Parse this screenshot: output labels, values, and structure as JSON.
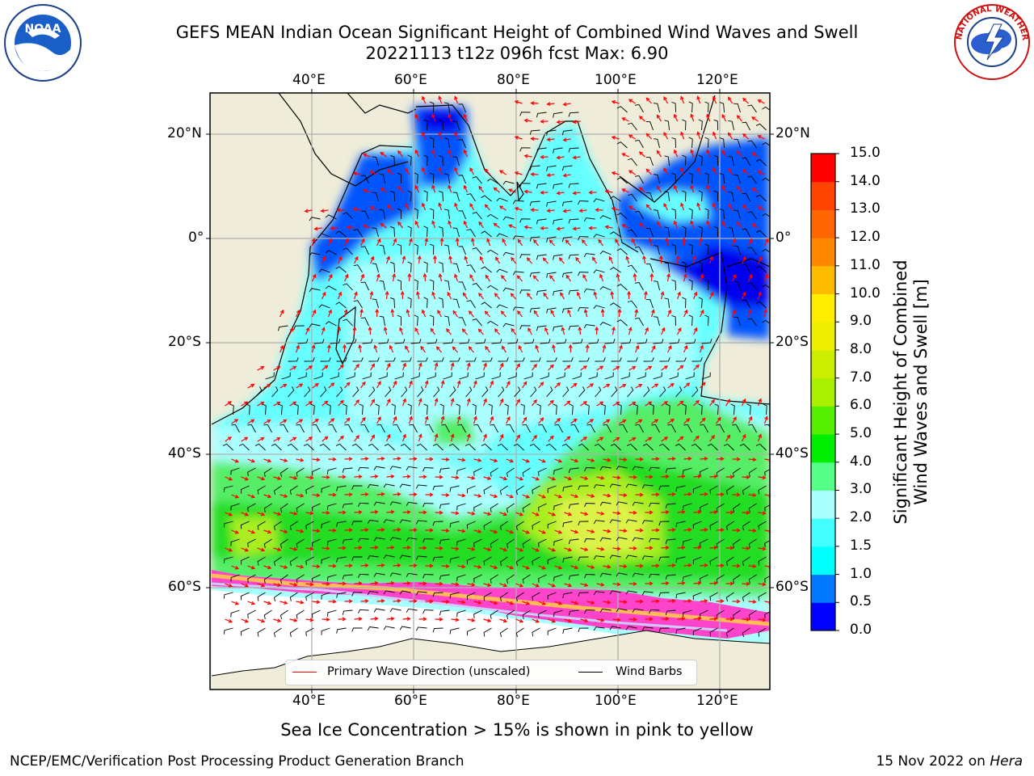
{
  "title": {
    "line1": "GEFS MEAN Indian Ocean Significant Height of Combined Wind Waves and Swell",
    "line2": "20221113 t12z 096h fcst   Max: 6.90"
  },
  "logos": {
    "left": {
      "name": "NOAA",
      "text": "NOAA",
      "ring_text": "NATIONAL OCEANIC AND ATMOSPHERIC ADMINISTRATION · U.S. DEPARTMENT OF COMMERCE"
    },
    "right": {
      "name": "National Weather Service",
      "ring_text": "NATIONAL WEATHER SERVICE"
    }
  },
  "map": {
    "lon_ticks": [
      "40°E",
      "60°E",
      "80°E",
      "100°E",
      "120°E"
    ],
    "lat_ticks": [
      "20°N",
      "0°",
      "20°S",
      "40°S",
      "60°S"
    ],
    "lon_range": [
      20,
      130
    ],
    "lat_range": [
      -76,
      26
    ],
    "colors": {
      "land": "#efedd9",
      "ocean_calm": "#66ffff",
      "ocean_mid": "#aaffff",
      "ocean_high": "#55ee66",
      "ocean_peak": "#ddf24a",
      "shallow": "#0055ff",
      "deep": "#0000ee",
      "ice": "#ff44cc",
      "ice_edge": "#ffbb55",
      "wave_arrow": "#ff0000",
      "wind_barb": "#000000"
    }
  },
  "legend": {
    "wave": "Primary Wave Direction (unscaled)",
    "wind": "Wind Barbs"
  },
  "colorbar": {
    "label_line1": "Significant Height of Combined",
    "label_line2": "Wind Waves and Swell [m]",
    "ticks": [
      "0.0",
      "0.5",
      "1.0",
      "1.5",
      "2.0",
      "3.0",
      "4.0",
      "5.0",
      "6.0",
      "7.0",
      "8.0",
      "9.0",
      "10.0",
      "11.0",
      "12.0",
      "13.0",
      "14.0",
      "15.0"
    ],
    "colors": [
      "#0000ff",
      "#0077ff",
      "#00ffff",
      "#44ffff",
      "#aaffff",
      "#55ff88",
      "#00ee00",
      "#55ee00",
      "#aaee00",
      "#ccee00",
      "#eeee00",
      "#ffee00",
      "#ffbb00",
      "#ff8800",
      "#ff6600",
      "#ff4400",
      "#ff0000"
    ]
  },
  "notes": {
    "ice": "Sea Ice Concentration > 15% is shown in pink to yellow"
  },
  "footer": {
    "left": "NCEP/EMC/Verification Post Processing Product Generation Branch",
    "date": "15 Nov 2022 on ",
    "host": "Hera"
  }
}
